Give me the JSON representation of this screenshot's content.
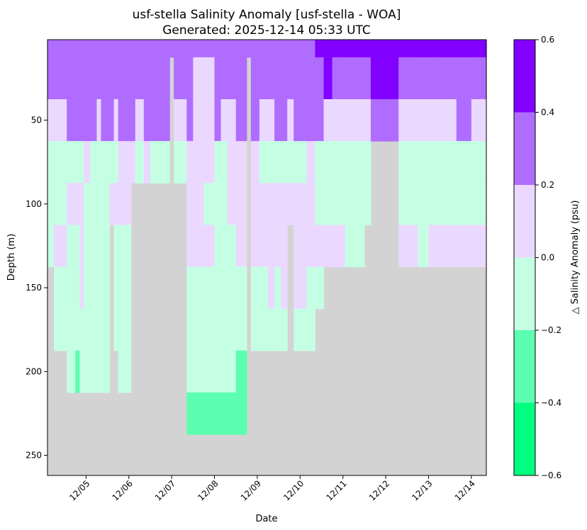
{
  "chart_data": {
    "type": "heatmap",
    "title": "usf-stella Salinity Anomaly [usf-stella - WOA]",
    "subtitle": "Generated: 2025-12-14 05:33 UTC",
    "xlabel": "Date",
    "ylabel": "Depth (m)",
    "colorbar_label": "△ Salinity Anomaly (psu)",
    "x_ticks": [
      "12/05",
      "12/06",
      "12/07",
      "12/08",
      "12/09",
      "12/10",
      "12/11",
      "12/12",
      "12/13",
      "12/14"
    ],
    "x_tick_values": [
      1,
      2,
      3,
      4,
      5,
      6,
      7,
      8,
      9,
      10
    ],
    "xlim": [
      0.1,
      10.35
    ],
    "y_ticks": [
      50,
      100,
      150,
      200,
      250
    ],
    "ylim": [
      262,
      2
    ],
    "colorbar_ticks": [
      -0.6,
      -0.4,
      -0.2,
      0.0,
      0.2,
      0.4,
      0.6
    ],
    "colorbar_tick_labels": [
      "−0.6",
      "−0.4",
      "−0.2",
      "0.0",
      "0.2",
      "0.4",
      "0.6"
    ],
    "clim": [
      -0.6,
      0.6
    ],
    "levels": [
      -0.6,
      -0.4,
      -0.2,
      0.0,
      0.2,
      0.4,
      0.6
    ],
    "colors": {
      "level_colors": [
        "#00ff7f",
        "#5cffaf",
        "#c5ffe3",
        "#ebd8ff",
        "#b06cff",
        "#8200ff"
      ],
      "nodata": "#d3d3d3"
    },
    "depth_bins": [
      0,
      12.5,
      37.5,
      62.5,
      87.5,
      112.5,
      137.5,
      162.5,
      187.5,
      212.5,
      237.5
    ],
    "level_index_note": "",
    "columns": [
      {
        "x0": 0.1,
        "x1": 0.25,
        "cells": [
          4,
          4,
          3,
          2,
          2,
          2,
          -1,
          -1,
          -1,
          -1
        ]
      },
      {
        "x0": 0.25,
        "x1": 0.35,
        "cells": [
          4,
          4,
          3,
          2,
          2,
          3,
          2,
          2,
          -1,
          -1
        ]
      },
      {
        "x0": 0.35,
        "x1": 0.55,
        "cells": [
          4,
          4,
          3,
          2,
          2,
          3,
          2,
          2,
          -1,
          -1
        ]
      },
      {
        "x0": 0.55,
        "x1": 0.75,
        "cells": [
          4,
          4,
          4,
          2,
          3,
          2,
          2,
          2,
          2,
          -1
        ]
      },
      {
        "x0": 0.75,
        "x1": 0.85,
        "cells": [
          4,
          4,
          4,
          2,
          3,
          2,
          2,
          2,
          1,
          -1
        ]
      },
      {
        "x0": 0.85,
        "x1": 0.95,
        "cells": [
          4,
          4,
          4,
          2,
          3,
          3,
          3,
          2,
          2,
          -1
        ]
      },
      {
        "x0": 0.95,
        "x1": 1.1,
        "cells": [
          4,
          4,
          4,
          3,
          2,
          2,
          2,
          2,
          2,
          -1
        ]
      },
      {
        "x0": 1.1,
        "x1": 1.25,
        "cells": [
          4,
          4,
          4,
          2,
          2,
          2,
          2,
          2,
          2,
          -1
        ]
      },
      {
        "x0": 1.25,
        "x1": 1.35,
        "cells": [
          4,
          4,
          3,
          2,
          2,
          2,
          2,
          2,
          2,
          -1
        ]
      },
      {
        "x0": 1.35,
        "x1": 1.55,
        "cells": [
          4,
          4,
          4,
          2,
          2,
          2,
          2,
          2,
          2,
          -1
        ]
      },
      {
        "x0": 1.55,
        "x1": 1.65,
        "cells": [
          4,
          4,
          4,
          2,
          3,
          -1,
          -1,
          -1,
          -1,
          -1
        ]
      },
      {
        "x0": 1.65,
        "x1": 1.75,
        "cells": [
          4,
          4,
          3,
          2,
          3,
          2,
          2,
          2,
          -1,
          -1
        ]
      },
      {
        "x0": 1.75,
        "x1": 1.85,
        "cells": [
          4,
          4,
          4,
          3,
          3,
          2,
          2,
          2,
          2,
          -1
        ]
      },
      {
        "x0": 1.85,
        "x1": 2.05,
        "cells": [
          4,
          4,
          4,
          3,
          3,
          2,
          2,
          2,
          2,
          -1
        ]
      },
      {
        "x0": 2.05,
        "x1": 2.15,
        "cells": [
          4,
          4,
          4,
          3,
          -1,
          -1,
          -1,
          -1,
          -1,
          -1
        ]
      },
      {
        "x0": 2.15,
        "x1": 2.35,
        "cells": [
          4,
          4,
          3,
          2,
          -1,
          -1,
          -1,
          -1,
          -1,
          -1
        ]
      },
      {
        "x0": 2.35,
        "x1": 2.5,
        "cells": [
          4,
          4,
          4,
          3,
          -1,
          -1,
          -1,
          -1,
          -1,
          -1
        ]
      },
      {
        "x0": 2.5,
        "x1": 2.65,
        "cells": [
          4,
          4,
          4,
          2,
          -1,
          -1,
          -1,
          -1,
          -1,
          -1
        ]
      },
      {
        "x0": 2.65,
        "x1": 2.95,
        "cells": [
          4,
          4,
          4,
          2,
          -1,
          -1,
          -1,
          -1,
          -1,
          -1
        ]
      },
      {
        "x0": 2.95,
        "x1": 3.05,
        "cells": [
          4,
          -1,
          -1,
          -1,
          -1,
          -1,
          -1,
          -1,
          -1,
          -1
        ]
      },
      {
        "x0": 3.05,
        "x1": 3.35,
        "cells": [
          4,
          4,
          3,
          2,
          -1,
          -1,
          -1,
          -1,
          -1,
          -1
        ]
      },
      {
        "x0": 3.35,
        "x1": 3.5,
        "cells": [
          4,
          4,
          4,
          3,
          3,
          3,
          2,
          2,
          2,
          1
        ]
      },
      {
        "x0": 3.5,
        "x1": 3.75,
        "cells": [
          4,
          3,
          3,
          3,
          3,
          3,
          2,
          2,
          2,
          1
        ]
      },
      {
        "x0": 3.75,
        "x1": 4.0,
        "cells": [
          4,
          3,
          3,
          3,
          2,
          3,
          2,
          2,
          2,
          1
        ]
      },
      {
        "x0": 4.0,
        "x1": 4.15,
        "cells": [
          4,
          4,
          4,
          2,
          2,
          2,
          2,
          2,
          2,
          1
        ]
      },
      {
        "x0": 4.15,
        "x1": 4.3,
        "cells": [
          4,
          4,
          3,
          2,
          2,
          2,
          2,
          2,
          2,
          1
        ]
      },
      {
        "x0": 4.3,
        "x1": 4.5,
        "cells": [
          4,
          4,
          3,
          3,
          3,
          2,
          2,
          2,
          2,
          1
        ]
      },
      {
        "x0": 4.5,
        "x1": 4.75,
        "cells": [
          4,
          4,
          4,
          3,
          3,
          3,
          2,
          2,
          1,
          1
        ]
      },
      {
        "x0": 4.75,
        "x1": 4.85,
        "cells": [
          4,
          -1,
          -1,
          -1,
          -1,
          -1,
          -1,
          -1,
          -1,
          -1
        ]
      },
      {
        "x0": 4.85,
        "x1": 5.05,
        "cells": [
          4,
          4,
          4,
          3,
          3,
          3,
          2,
          2,
          -1,
          -1
        ]
      },
      {
        "x0": 5.05,
        "x1": 5.25,
        "cells": [
          4,
          4,
          3,
          2,
          3,
          3,
          2,
          2,
          -1,
          -1
        ]
      },
      {
        "x0": 5.25,
        "x1": 5.4,
        "cells": [
          4,
          4,
          3,
          2,
          3,
          3,
          3,
          2,
          -1,
          -1
        ]
      },
      {
        "x0": 5.4,
        "x1": 5.55,
        "cells": [
          4,
          4,
          4,
          2,
          3,
          3,
          2,
          2,
          -1,
          -1
        ]
      },
      {
        "x0": 5.55,
        "x1": 5.7,
        "cells": [
          4,
          4,
          4,
          2,
          3,
          3,
          3,
          2,
          -1,
          -1
        ]
      },
      {
        "x0": 5.7,
        "x1": 5.85,
        "cells": [
          4,
          4,
          3,
          2,
          3,
          -1,
          -1,
          -1,
          -1,
          -1
        ]
      },
      {
        "x0": 5.85,
        "x1": 6.0,
        "cells": [
          4,
          4,
          4,
          2,
          3,
          3,
          3,
          2,
          -1,
          -1
        ]
      },
      {
        "x0": 6.0,
        "x1": 6.15,
        "cells": [
          4,
          4,
          4,
          2,
          3,
          3,
          3,
          2,
          -1,
          -1
        ]
      },
      {
        "x0": 6.15,
        "x1": 6.35,
        "cells": [
          4,
          4,
          4,
          3,
          3,
          3,
          2,
          2,
          -1,
          -1
        ]
      },
      {
        "x0": 6.35,
        "x1": 6.55,
        "cells": [
          5,
          4,
          4,
          2,
          2,
          3,
          2,
          -1,
          -1,
          -1
        ]
      },
      {
        "x0": 6.55,
        "x1": 6.75,
        "cells": [
          5,
          5,
          3,
          2,
          2,
          3,
          -1,
          -1,
          -1,
          -1
        ]
      },
      {
        "x0": 6.75,
        "x1": 7.05,
        "cells": [
          5,
          4,
          3,
          2,
          2,
          3,
          -1,
          -1,
          -1,
          -1
        ]
      },
      {
        "x0": 7.05,
        "x1": 7.35,
        "cells": [
          5,
          4,
          3,
          2,
          2,
          2,
          -1,
          -1,
          -1,
          -1
        ]
      },
      {
        "x0": 7.35,
        "x1": 7.5,
        "cells": [
          5,
          4,
          3,
          2,
          2,
          2,
          -1,
          -1,
          -1,
          -1
        ]
      },
      {
        "x0": 7.5,
        "x1": 7.65,
        "cells": [
          5,
          4,
          3,
          2,
          2,
          -1,
          -1,
          -1,
          -1,
          -1
        ]
      },
      {
        "x0": 7.65,
        "x1": 8.0,
        "cells": [
          5,
          5,
          4,
          -1,
          -1,
          -1,
          -1,
          -1,
          -1,
          -1
        ]
      },
      {
        "x0": 8.0,
        "x1": 8.3,
        "cells": [
          5,
          5,
          4,
          -1,
          -1,
          -1,
          -1,
          -1,
          -1,
          -1
        ]
      },
      {
        "x0": 8.3,
        "x1": 8.75,
        "cells": [
          5,
          4,
          3,
          2,
          2,
          3,
          -1,
          -1,
          -1,
          -1
        ]
      },
      {
        "x0": 8.75,
        "x1": 9.0,
        "cells": [
          5,
          4,
          3,
          2,
          2,
          2,
          -1,
          -1,
          -1,
          -1
        ]
      },
      {
        "x0": 9.0,
        "x1": 9.35,
        "cells": [
          5,
          4,
          3,
          2,
          2,
          3,
          -1,
          -1,
          -1,
          -1
        ]
      },
      {
        "x0": 9.35,
        "x1": 9.65,
        "cells": [
          5,
          4,
          3,
          2,
          2,
          3,
          -1,
          -1,
          -1,
          -1
        ]
      },
      {
        "x0": 9.65,
        "x1": 10.0,
        "cells": [
          5,
          4,
          4,
          2,
          2,
          3,
          -1,
          -1,
          -1,
          -1
        ]
      },
      {
        "x0": 10.0,
        "x1": 10.35,
        "cells": [
          5,
          4,
          3,
          2,
          2,
          3,
          -1,
          -1,
          -1,
          -1
        ]
      }
    ]
  }
}
